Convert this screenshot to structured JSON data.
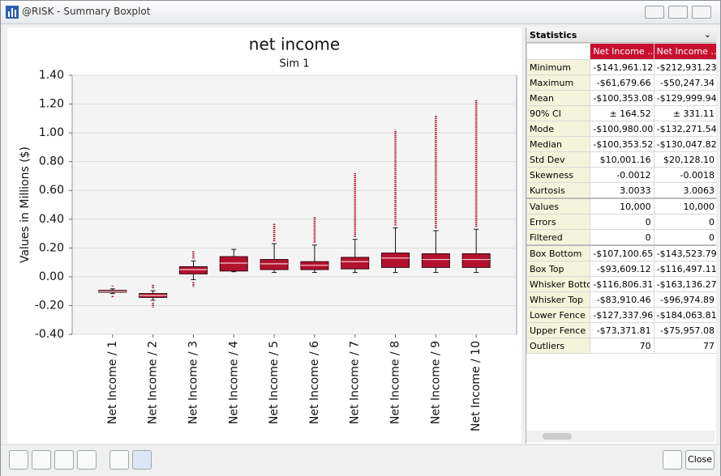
{
  "window": {
    "title": "@RISK - Summary Boxplot"
  },
  "chart_data": {
    "type": "boxplot",
    "title": "net income",
    "subtitle": "Sim 1",
    "y_label": "Values in Millions ($)",
    "categories": [
      "Net Income / 1",
      "Net Income / 2",
      "Net Income / 3",
      "Net Income / 4",
      "Net Income / 5",
      "Net Income / 6",
      "Net Income / 7",
      "Net Income / 8",
      "Net Income / 9",
      "Net Income / 10"
    ],
    "ylim": [
      -0.4,
      1.4
    ],
    "yticks": [
      {
        "value": -0.4,
        "label": "-0.40"
      },
      {
        "value": -0.2,
        "label": "-0.20"
      },
      {
        "value": 0,
        "label": "0.00"
      },
      {
        "value": 0.2,
        "label": "0.20"
      },
      {
        "value": 0.4,
        "label": "0.40"
      },
      {
        "value": 0.6,
        "label": "0.60"
      },
      {
        "value": 0.8,
        "label": "0.80"
      },
      {
        "value": 1.0,
        "label": "1.00"
      },
      {
        "value": 1.2,
        "label": "1.20"
      },
      {
        "value": 1.4,
        "label": "1.40"
      }
    ],
    "grid": true,
    "color": "#b3122f",
    "min": [
      -0.14196,
      -0.21293,
      -0.07,
      0.035,
      0.03,
      0.03,
      0.03,
      0.03,
      0.03,
      0.03
    ],
    "whisker_low": [
      -0.11681,
      -0.16314,
      -0.02,
      0.035,
      0.03,
      0.03,
      0.03,
      0.03,
      0.03,
      0.03
    ],
    "box_low": [
      -0.1071,
      -0.14352,
      0.02,
      0.04,
      0.05,
      0.05,
      0.055,
      0.065,
      0.065,
      0.065
    ],
    "median": [
      -0.10035,
      -0.13005,
      0.05,
      0.095,
      0.09,
      0.08,
      0.105,
      0.13,
      0.12,
      0.12
    ],
    "box_high": [
      -0.09361,
      -0.1165,
      0.07,
      0.14,
      0.12,
      0.105,
      0.135,
      0.165,
      0.16,
      0.16
    ],
    "whisker_high": [
      -0.08391,
      -0.09697,
      0.11,
      0.19,
      0.23,
      0.22,
      0.26,
      0.34,
      0.32,
      0.33
    ],
    "max": [
      -0.06168,
      -0.05025,
      0.18,
      0.19,
      0.37,
      0.42,
      0.72,
      1.02,
      1.12,
      1.23
    ]
  },
  "statistics": {
    "title": "Statistics",
    "columns": [
      "Net Income ...",
      "Net Income ..."
    ],
    "rows": [
      [
        "Minimum",
        "-$141,961.12",
        "-$212,931.23"
      ],
      [
        "Maximum",
        "-$61,679.66",
        "-$50,247.34"
      ],
      [
        "Mean",
        "-$100,353.08",
        "-$129,999.94"
      ],
      [
        "90% CI",
        "± 164.52",
        "± 331.11"
      ],
      [
        "Mode",
        "-$100,980.00",
        "-$132,271.54"
      ],
      [
        "Median",
        "-$100,353.52",
        "-$130,047.82"
      ],
      [
        "Std Dev",
        "$10,001.16",
        "$20,128.10"
      ],
      [
        "Skewness",
        "-0.0012",
        "-0.0018"
      ],
      [
        "Kurtosis",
        "3.0033",
        "3.0063"
      ],
      [
        "Values",
        "10,000",
        "10,000"
      ],
      [
        "Errors",
        "0",
        "0"
      ],
      [
        "Filtered",
        "0",
        "0"
      ],
      [
        "Box Bottom",
        "-$107,100.65",
        "-$143,523.79"
      ],
      [
        "Box Top",
        "-$93,609.12",
        "-$116,497.11"
      ],
      [
        "Whisker Bottom",
        "-$116,806.31",
        "-$163,136.27"
      ],
      [
        "Whisker Top",
        "-$83,910.46",
        "-$96,974.89"
      ],
      [
        "Lower Fence",
        "-$127,337.96",
        "-$184,063.81"
      ],
      [
        "Upper Fence",
        "-$73,371.81",
        "-$75,957.08"
      ],
      [
        "Outliers",
        "70",
        "77"
      ]
    ]
  },
  "toolbar": {
    "close": "Close"
  }
}
